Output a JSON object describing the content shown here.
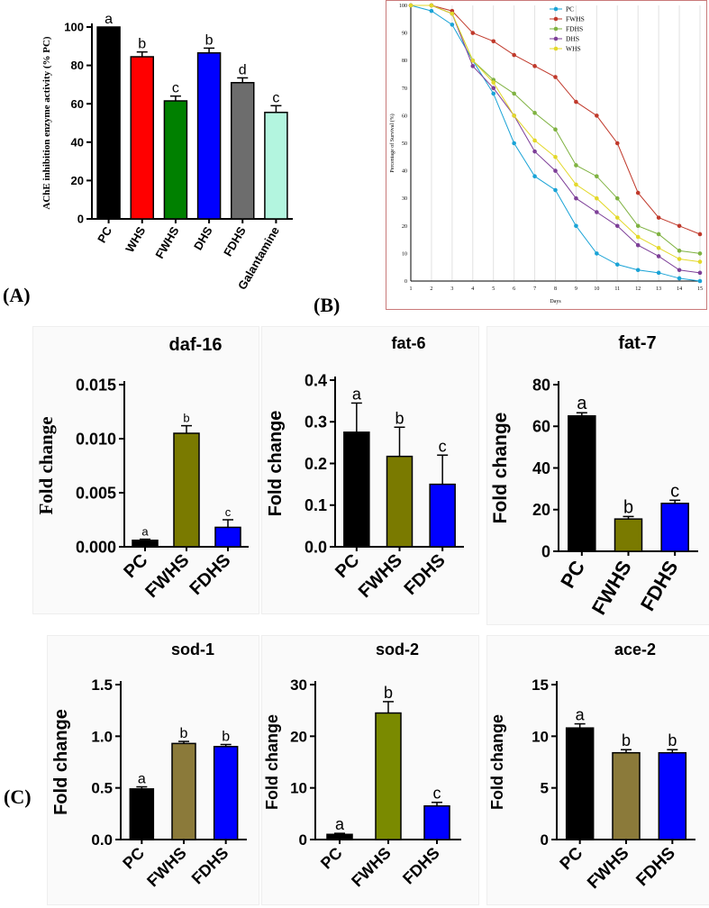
{
  "panel_tags": {
    "a": "(A)",
    "b": "(B)",
    "c": "(C)"
  },
  "chart_data": [
    {
      "id": "ache",
      "type": "bar",
      "title": "",
      "xlabel": "",
      "ylabel": "AChE inhibition enzyme activity (% PC)",
      "categories": [
        "PC",
        "WHS",
        "FWHS",
        "DHS",
        "FDHS",
        "Galantamine"
      ],
      "values": [
        100,
        84.5,
        61.5,
        86.5,
        71,
        55.5
      ],
      "errors": [
        0,
        2.5,
        2.5,
        2.5,
        2.5,
        3.5
      ],
      "letters": [
        "a",
        "b",
        "c",
        "b",
        "d",
        "c"
      ],
      "colors": [
        "#000000",
        "#ff0000",
        "#008000",
        "#0000ff",
        "#6d6d6d",
        "#b3f5df"
      ],
      "ylim": [
        0,
        100
      ],
      "yticks": [
        0,
        20,
        40,
        60,
        80,
        100
      ],
      "ytick_labels": [
        "0",
        "20",
        "40",
        "60",
        "80",
        "100"
      ]
    },
    {
      "id": "survival",
      "type": "line",
      "title": "",
      "xlabel": "Days",
      "ylabel": "Percentage of Survival (%)",
      "x": [
        1,
        2,
        3,
        4,
        5,
        6,
        7,
        8,
        9,
        10,
        11,
        12,
        13,
        14,
        15
      ],
      "xlim": [
        1,
        15
      ],
      "ylim": [
        0,
        100
      ],
      "yticks": [
        0,
        10,
        20,
        30,
        40,
        50,
        60,
        70,
        80,
        90,
        100
      ],
      "series": [
        {
          "name": "PC",
          "color": "#1aa3d6",
          "values": [
            100,
            98,
            93,
            80,
            68,
            50,
            38,
            33,
            20,
            10,
            6,
            4,
            3,
            1,
            0
          ]
        },
        {
          "name": "FWHS",
          "color": "#c0392b",
          "values": [
            100,
            100,
            98,
            90,
            87,
            82,
            78,
            74,
            65,
            60,
            50,
            32,
            23,
            20,
            17
          ]
        },
        {
          "name": "FDHS",
          "color": "#7fb241",
          "values": [
            100,
            100,
            97,
            80,
            73,
            68,
            61,
            55,
            42,
            38,
            30,
            20,
            17,
            11,
            10
          ]
        },
        {
          "name": "DHS",
          "color": "#7d3f98",
          "values": [
            100,
            100,
            97,
            78,
            70,
            60,
            47,
            40,
            30,
            25,
            20,
            13,
            9,
            4,
            3
          ]
        },
        {
          "name": "WHS",
          "color": "#e3d82a",
          "values": [
            100,
            100,
            97,
            80,
            72,
            60,
            51,
            45,
            35,
            30,
            23,
            16,
            12,
            8,
            7
          ]
        }
      ]
    },
    {
      "id": "daf16",
      "type": "bar",
      "title": "daf-16",
      "ylabel": "Fold change",
      "categories": [
        "PC",
        "FWHS",
        "FDHS"
      ],
      "values": [
        0.0006,
        0.0105,
        0.0018
      ],
      "errors": [
        0.0001,
        0.0007,
        0.0007
      ],
      "letters": [
        "a",
        "b",
        "c"
      ],
      "colors": [
        "#000000",
        "#7a7a00",
        "#0000ff"
      ],
      "ylim": [
        0,
        0.015
      ],
      "yticks": [
        0,
        0.005,
        0.01,
        0.015
      ],
      "ytick_labels": [
        "0.000",
        "0.005",
        "0.010",
        "0.015"
      ]
    },
    {
      "id": "fat6",
      "type": "bar",
      "title": "fat-6",
      "ylabel": "Fold change",
      "categories": [
        "PC",
        "FWHS",
        "FDHS"
      ],
      "values": [
        0.275,
        0.217,
        0.15
      ],
      "errors": [
        0.07,
        0.07,
        0.07
      ],
      "letters": [
        "a",
        "b",
        "c"
      ],
      "colors": [
        "#000000",
        "#7a7a00",
        "#0000ff"
      ],
      "ylim": [
        0,
        0.4
      ],
      "yticks": [
        0,
        0.1,
        0.2,
        0.3,
        0.4
      ],
      "ytick_labels": [
        "0.0",
        "0.1",
        "0.2",
        "0.3",
        "0.4"
      ]
    },
    {
      "id": "fat7",
      "type": "bar",
      "title": "fat-7",
      "ylabel": "Fold change",
      "categories": [
        "PC",
        "FWHS",
        "FDHS"
      ],
      "values": [
        65,
        15.5,
        23
      ],
      "errors": [
        1.5,
        1.2,
        1.5
      ],
      "letters": [
        "a",
        "b",
        "c"
      ],
      "colors": [
        "#000000",
        "#7a7a00",
        "#0000ff"
      ],
      "ylim": [
        0,
        80
      ],
      "yticks": [
        0,
        20,
        40,
        60,
        80
      ],
      "ytick_labels": [
        "0",
        "20",
        "40",
        "60",
        "80"
      ]
    },
    {
      "id": "sod1",
      "type": "bar",
      "title": "sod-1",
      "ylabel": "Fold change",
      "categories": [
        "PC",
        "FWHS",
        "FDHS"
      ],
      "values": [
        0.49,
        0.93,
        0.9
      ],
      "errors": [
        0.02,
        0.02,
        0.02
      ],
      "letters": [
        "a",
        "b",
        "b"
      ],
      "colors": [
        "#000000",
        "#8b7a3a",
        "#0000ff"
      ],
      "ylim": [
        0,
        1.5
      ],
      "yticks": [
        0,
        0.5,
        1.0,
        1.5
      ],
      "ytick_labels": [
        "0.0",
        "0.5",
        "1.0",
        "1.5"
      ]
    },
    {
      "id": "sod2",
      "type": "bar",
      "title": "sod-2",
      "ylabel": "Fold change",
      "categories": [
        "PC",
        "FWHS",
        "FDHS"
      ],
      "values": [
        1,
        24.5,
        6.5
      ],
      "errors": [
        0.2,
        2.2,
        0.7
      ],
      "letters": [
        "a",
        "b",
        "c"
      ],
      "colors": [
        "#000000",
        "#7a8a00",
        "#0000ff"
      ],
      "ylim": [
        0,
        30
      ],
      "yticks": [
        0,
        10,
        20,
        30
      ],
      "ytick_labels": [
        "0",
        "10",
        "20",
        "30"
      ]
    },
    {
      "id": "ace2",
      "type": "bar",
      "title": "ace-2",
      "ylabel": "Fold change",
      "categories": [
        "PC",
        "FWHS",
        "FDHS"
      ],
      "values": [
        10.8,
        8.4,
        8.4
      ],
      "errors": [
        0.4,
        0.3,
        0.3
      ],
      "letters": [
        "a",
        "b",
        "b"
      ],
      "colors": [
        "#000000",
        "#8b7a3a",
        "#0000ff"
      ],
      "ylim": [
        0,
        15
      ],
      "yticks": [
        0,
        5,
        10,
        15
      ],
      "ytick_labels": [
        "0",
        "5",
        "10",
        "15"
      ]
    }
  ]
}
